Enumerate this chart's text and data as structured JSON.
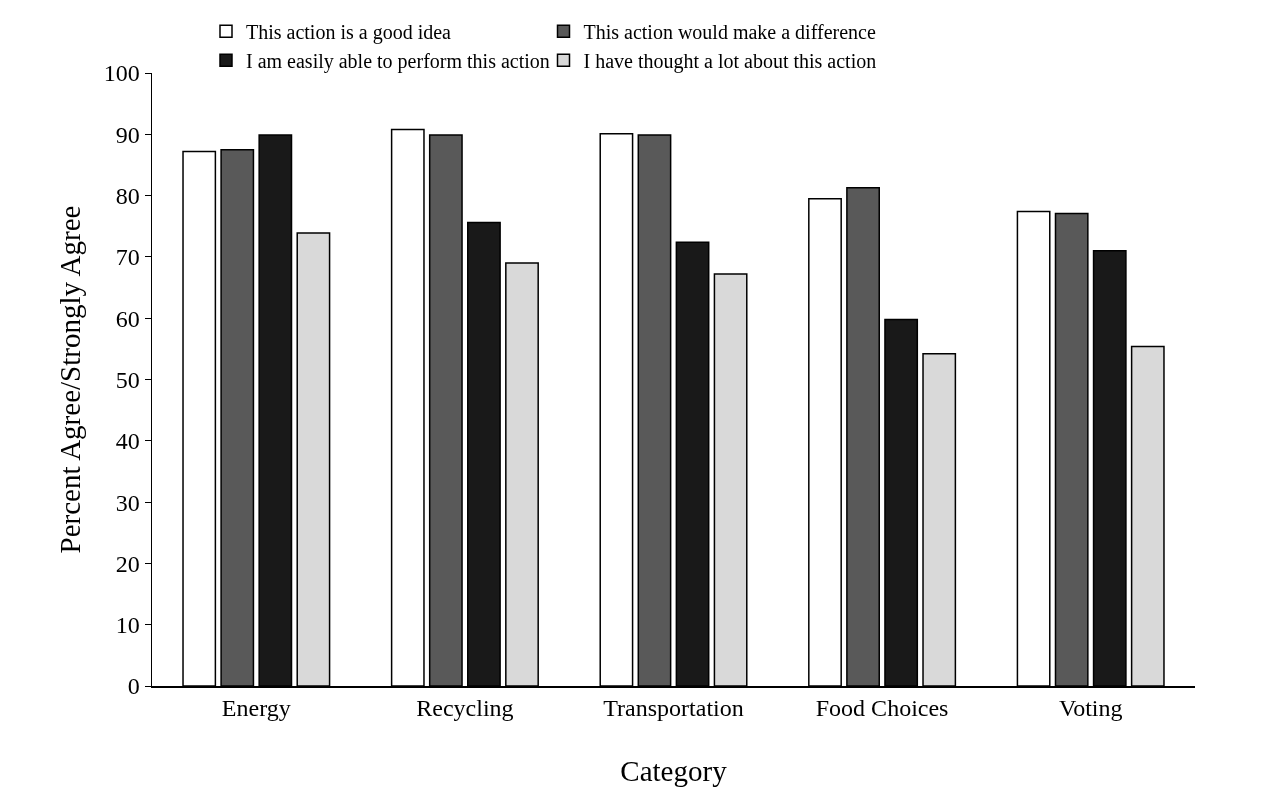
{
  "chart_data": {
    "type": "bar",
    "xlabel": "Category",
    "ylabel": "Percent Agree/Strongly Agree",
    "categories": [
      "Energy",
      "Recycling",
      "Transportation",
      "Food Choices",
      "Voting"
    ],
    "series": [
      {
        "name": "This action is a good idea",
        "color": "#ffffff",
        "values": [
          87.2,
          90.8,
          90.1,
          79.5,
          77.4
        ]
      },
      {
        "name": "This action would make a difference",
        "color": "#595959",
        "values": [
          87.5,
          89.9,
          89.9,
          81.3,
          77.1
        ]
      },
      {
        "name": "I am easily able to perform this action",
        "color": "#191919",
        "values": [
          89.9,
          75.6,
          72.4,
          59.8,
          71.0
        ]
      },
      {
        "name": "I have thought a lot about this action",
        "color": "#d9d9d9",
        "values": [
          73.9,
          69.0,
          67.2,
          54.2,
          55.4
        ]
      }
    ],
    "ylim": [
      0,
      100
    ],
    "yticks": [
      0,
      10,
      20,
      30,
      40,
      50,
      60,
      70,
      80,
      90,
      100
    ],
    "grid": false,
    "legend": "top"
  }
}
